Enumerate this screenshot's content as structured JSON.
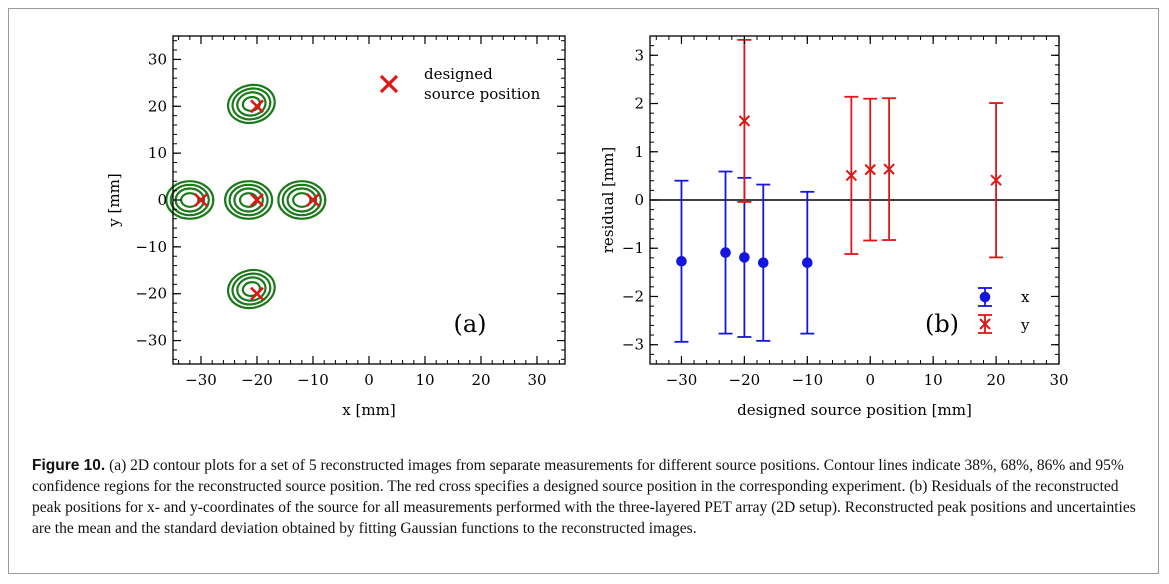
{
  "caption": {
    "label": "Figure 10.",
    "text": "(a) 2D contour plots for a set of 5 reconstructed images from separate measurements for different source positions. Contour lines indicate 38%, 68%, 86% and 95% confidence regions for the reconstructed source position. The red cross specifies a designed source position in the corresponding experiment. (b) Residuals of the reconstructed peak positions for x- and y-coordinates of the source for all measurements performed with the three-layered PET array (2D setup). Reconstructed peak positions and uncertainties are the mean and the standard deviation obtained by fitting Gaussian functions to the reconstructed images."
  },
  "colors": {
    "contour": "#1a7a1a",
    "x_series": "#1515e0",
    "y_series": "#e01515",
    "axis": "#000000"
  },
  "chart_data": [
    {
      "type": "contour",
      "panel_label": "(a)",
      "xlabel": "x [mm]",
      "ylabel": "y [mm]",
      "xlim": [
        -35,
        35
      ],
      "ylim": [
        -35,
        35
      ],
      "xticks": [
        -30,
        -20,
        -10,
        0,
        10,
        20,
        30
      ],
      "yticks": [
        -30,
        -20,
        -10,
        0,
        10,
        20,
        30
      ],
      "xtick_labels": [
        "−30",
        "−20",
        "−10",
        "0",
        "10",
        "20",
        "30"
      ],
      "ytick_labels": [
        "−30",
        "−20",
        "−10",
        "0",
        "10",
        "20",
        "30"
      ],
      "legend": {
        "label_line1": "designed",
        "label_line2": "source position",
        "placement": "top-right"
      },
      "contour_levels": [
        "38%",
        "68%",
        "86%",
        "95%"
      ],
      "designed_positions": [
        [
          -20,
          20
        ],
        [
          -30,
          0
        ],
        [
          -20,
          0
        ],
        [
          -10,
          0
        ],
        [
          -20,
          -20
        ]
      ],
      "reconstructed_centers": [
        [
          -21,
          20.5
        ],
        [
          -32,
          0
        ],
        [
          -21.5,
          0
        ],
        [
          -12,
          0
        ],
        [
          -21,
          -19
        ]
      ]
    },
    {
      "type": "scatter",
      "panel_label": "(b)",
      "xlabel": "designed source position [mm]",
      "ylabel": "residual [mm]",
      "xlim": [
        -35,
        30
      ],
      "ylim": [
        -3.4,
        3.4
      ],
      "xticks": [
        -30,
        -20,
        -10,
        0,
        10,
        20,
        30
      ],
      "yticks": [
        -3,
        -2,
        -1,
        0,
        1,
        2,
        3
      ],
      "xtick_labels": [
        "−30",
        "−20",
        "−10",
        "0",
        "10",
        "20",
        "30"
      ],
      "ytick_labels": [
        "−3",
        "−2",
        "−1",
        "0",
        "1",
        "2",
        "3"
      ],
      "legend_placement": "bottom-right",
      "series": [
        {
          "name": "x",
          "marker": "circle",
          "x": [
            -30,
            -23,
            -20,
            -17,
            -10
          ],
          "y": [
            -1.27,
            -1.09,
            -1.19,
            -1.3,
            -1.3
          ],
          "err": [
            1.67,
            1.68,
            1.65,
            1.62,
            1.47
          ]
        },
        {
          "name": "y",
          "marker": "cross",
          "x": [
            -20,
            -3,
            0,
            3,
            20
          ],
          "y": [
            1.64,
            0.51,
            0.63,
            0.64,
            0.41
          ],
          "err": [
            1.68,
            1.63,
            1.47,
            1.47,
            1.6
          ]
        }
      ]
    }
  ]
}
